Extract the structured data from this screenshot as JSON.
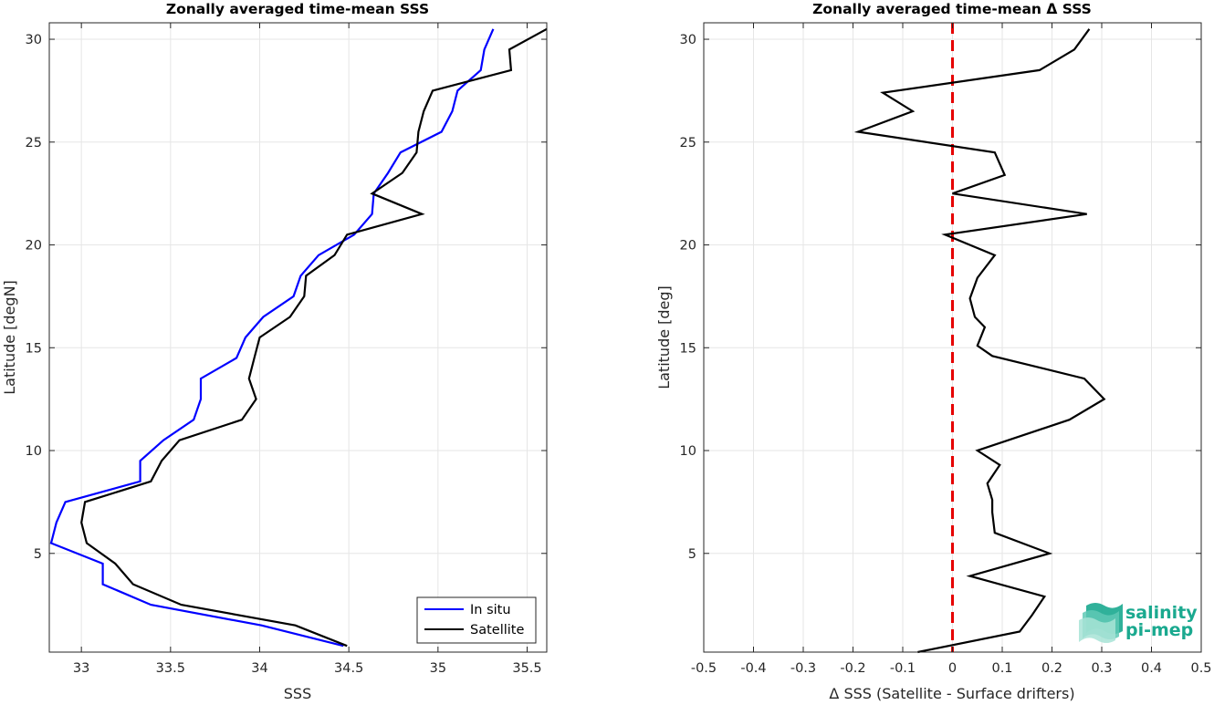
{
  "charts": [
    {
      "type": "line",
      "title": "Zonally averaged time-mean SSS",
      "xlabel": "SSS",
      "ylabel": "Latitude [degN]",
      "xlim": [
        32.82,
        35.61
      ],
      "ylim": [
        0.2,
        30.8
      ],
      "xticks": [
        33,
        33.5,
        34,
        34.5,
        35,
        35.5
      ],
      "xtick_labels": [
        "33",
        "33.5",
        "34",
        "34.5",
        "35",
        "35.5"
      ],
      "yticks": [
        5,
        10,
        15,
        20,
        25,
        30
      ],
      "ytick_labels": [
        "5",
        "10",
        "15",
        "20",
        "25",
        "30"
      ],
      "grid": true,
      "legend_position": "bottom-right",
      "series": [
        {
          "name": "In situ",
          "color": "#0000ff",
          "points": [
            [
              34.47,
              0.5
            ],
            [
              34.01,
              1.5
            ],
            [
              33.39,
              2.5
            ],
            [
              33.12,
              3.5
            ],
            [
              33.12,
              4.5
            ],
            [
              32.83,
              5.5
            ],
            [
              32.86,
              6.5
            ],
            [
              32.91,
              7.5
            ],
            [
              33.33,
              8.5
            ],
            [
              33.33,
              9.5
            ],
            [
              33.46,
              10.5
            ],
            [
              33.63,
              11.5
            ],
            [
              33.67,
              12.5
            ],
            [
              33.67,
              13.5
            ],
            [
              33.87,
              14.5
            ],
            [
              33.92,
              15.5
            ],
            [
              34.02,
              16.5
            ],
            [
              34.19,
              17.5
            ],
            [
              34.23,
              18.5
            ],
            [
              34.33,
              19.5
            ],
            [
              34.53,
              20.5
            ],
            [
              34.63,
              21.5
            ],
            [
              34.64,
              22.5
            ],
            [
              34.72,
              23.5
            ],
            [
              34.79,
              24.5
            ],
            [
              35.02,
              25.5
            ],
            [
              35.08,
              26.5
            ],
            [
              35.11,
              27.5
            ],
            [
              35.24,
              28.5
            ],
            [
              35.26,
              29.5
            ],
            [
              35.31,
              30.5
            ]
          ]
        },
        {
          "name": "Satellite",
          "color": "#000000",
          "points": [
            [
              34.49,
              0.5
            ],
            [
              34.2,
              1.5
            ],
            [
              33.56,
              2.5
            ],
            [
              33.29,
              3.5
            ],
            [
              33.19,
              4.5
            ],
            [
              33.03,
              5.5
            ],
            [
              33.0,
              6.5
            ],
            [
              33.02,
              7.5
            ],
            [
              33.39,
              8.5
            ],
            [
              33.45,
              9.5
            ],
            [
              33.55,
              10.5
            ],
            [
              33.9,
              11.5
            ],
            [
              33.98,
              12.5
            ],
            [
              33.94,
              13.5
            ],
            [
              33.97,
              14.5
            ],
            [
              34.0,
              15.5
            ],
            [
              34.17,
              16.5
            ],
            [
              34.25,
              17.5
            ],
            [
              34.26,
              18.5
            ],
            [
              34.42,
              19.5
            ],
            [
              34.49,
              20.5
            ],
            [
              34.91,
              21.5
            ],
            [
              34.63,
              22.5
            ],
            [
              34.8,
              23.5
            ],
            [
              34.88,
              24.5
            ],
            [
              34.89,
              25.5
            ],
            [
              34.92,
              26.5
            ],
            [
              34.97,
              27.5
            ],
            [
              35.41,
              28.5
            ],
            [
              35.4,
              29.5
            ],
            [
              35.61,
              30.5
            ]
          ]
        }
      ]
    },
    {
      "type": "line",
      "title": "Zonally averaged time-mean Δ SSS",
      "xlabel": "Δ SSS (Satellite - Surface drifters)",
      "ylabel": "Latitude [deg]",
      "xlim": [
        -0.5,
        0.5
      ],
      "ylim": [
        0.2,
        30.8
      ],
      "xticks": [
        -0.5,
        -0.4,
        -0.3,
        -0.2,
        -0.1,
        0,
        0.1,
        0.2,
        0.3,
        0.4,
        0.5
      ],
      "xtick_labels": [
        "-0.5",
        "-0.4",
        "-0.3",
        "-0.2",
        "-0.1",
        "0",
        "0.1",
        "0.2",
        "0.3",
        "0.4",
        "0.5"
      ],
      "yticks": [
        5,
        10,
        15,
        20,
        25,
        30
      ],
      "ytick_labels": [
        "5",
        "10",
        "15",
        "20",
        "25",
        "30"
      ],
      "grid": true,
      "zero_line": {
        "x": 0,
        "color": "#e60000",
        "style": "dashed"
      },
      "series": [
        {
          "color": "#000000",
          "points": [
            [
              -0.07,
              0.2
            ],
            [
              0.135,
              1.2
            ],
            [
              0.16,
              2.0
            ],
            [
              0.185,
              2.9
            ],
            [
              0.035,
              3.9
            ],
            [
              0.195,
              5.0
            ],
            [
              0.085,
              6.0
            ],
            [
              0.08,
              7.0
            ],
            [
              0.08,
              7.6
            ],
            [
              0.07,
              8.4
            ],
            [
              0.095,
              9.3
            ],
            [
              0.05,
              10.0
            ],
            [
              0.235,
              11.5
            ],
            [
              0.305,
              12.5
            ],
            [
              0.265,
              13.5
            ],
            [
              0.08,
              14.6
            ],
            [
              0.05,
              15.1
            ],
            [
              0.065,
              16.0
            ],
            [
              0.045,
              16.5
            ],
            [
              0.035,
              17.4
            ],
            [
              0.05,
              18.4
            ],
            [
              0.085,
              19.5
            ],
            [
              -0.015,
              20.5
            ],
            [
              0.27,
              21.5
            ],
            [
              0.0,
              22.5
            ],
            [
              0.105,
              23.4
            ],
            [
              0.085,
              24.5
            ],
            [
              -0.19,
              25.5
            ],
            [
              -0.08,
              26.5
            ],
            [
              -0.14,
              27.4
            ],
            [
              0.175,
              28.5
            ],
            [
              0.245,
              29.5
            ],
            [
              0.275,
              30.5
            ]
          ]
        }
      ]
    }
  ],
  "logo": {
    "line1": "salinity",
    "line2": "pi-mep",
    "icon": "wave-layers-icon",
    "color": "#1aa98f"
  }
}
